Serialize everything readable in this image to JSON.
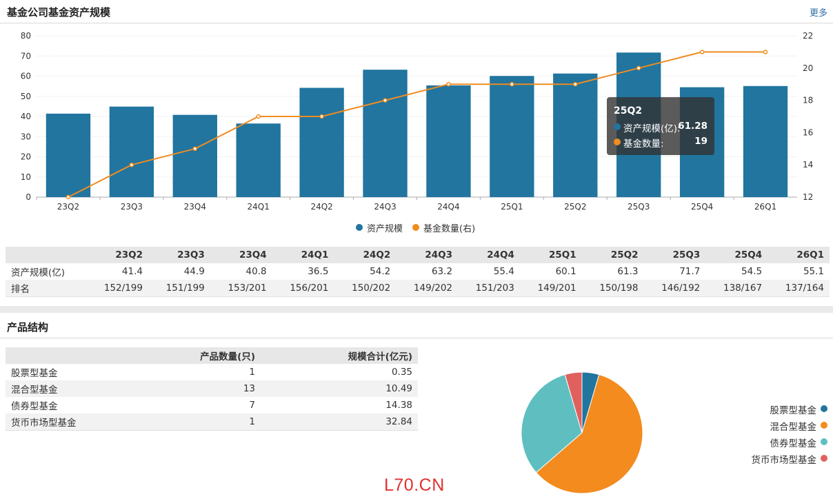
{
  "section1": {
    "title": "基金公司基金资产规模",
    "more": "更多"
  },
  "chart_data": [
    {
      "type": "bar+line",
      "categories": [
        "23Q2",
        "23Q3",
        "23Q4",
        "24Q1",
        "24Q2",
        "24Q3",
        "24Q4",
        "25Q1",
        "25Q2",
        "25Q3",
        "25Q4",
        "26Q1"
      ],
      "series": [
        {
          "name": "资产规模",
          "type": "bar",
          "axis": "left",
          "color": "#21759f",
          "values": [
            41.4,
            44.9,
            40.8,
            36.5,
            54.2,
            63.2,
            55.4,
            60.1,
            61.3,
            71.7,
            54.5,
            55.1
          ]
        },
        {
          "name": "基金数量(右)",
          "type": "line",
          "axis": "right",
          "color": "#f08c20",
          "values": [
            12,
            14,
            15,
            17,
            17,
            18,
            19,
            19,
            19,
            20,
            21,
            21
          ]
        }
      ],
      "y_left": {
        "min": 0,
        "max": 80,
        "ticks": [
          "0",
          "10",
          "20",
          "30",
          "40",
          "50",
          "60",
          "70",
          "80"
        ]
      },
      "y_right": {
        "min": 12,
        "max": 22,
        "ticks": [
          "12",
          "14",
          "16",
          "18",
          "20",
          "22"
        ]
      },
      "grid": true,
      "legend": "bottom-center"
    },
    {
      "type": "pie",
      "categories": [
        "股票型基金",
        "混合型基金",
        "债券型基金",
        "货币市场型基金"
      ],
      "values": [
        1,
        13,
        7,
        1
      ],
      "colors": [
        "#21759f",
        "#f38b1e",
        "#5fbfc0",
        "#e0605e"
      ],
      "legend": "right"
    }
  ],
  "tooltip": {
    "title": "25Q2",
    "rows": [
      {
        "label": "资产规模(亿):",
        "value": "61.28",
        "color": "#21759f"
      },
      {
        "label": "基金数量:",
        "value": "19",
        "color": "#f08c20"
      }
    ]
  },
  "scale_table": {
    "headers": [
      "23Q2",
      "23Q3",
      "23Q4",
      "24Q1",
      "24Q2",
      "24Q3",
      "24Q4",
      "25Q1",
      "25Q2",
      "25Q3",
      "25Q4",
      "26Q1"
    ],
    "rows": [
      {
        "label": "资产规模(亿)",
        "cells": [
          "41.4",
          "44.9",
          "40.8",
          "36.5",
          "54.2",
          "63.2",
          "55.4",
          "60.1",
          "61.3",
          "71.7",
          "54.5",
          "55.1"
        ]
      },
      {
        "label": "排名",
        "cells": [
          "152/199",
          "151/199",
          "153/201",
          "156/201",
          "150/202",
          "149/202",
          "151/203",
          "149/201",
          "150/198",
          "146/192",
          "138/167",
          "137/164"
        ]
      }
    ]
  },
  "section2": {
    "title": "产品结构"
  },
  "structure_table": {
    "headers": [
      "",
      "产品数量(只)",
      "规模合计(亿元)"
    ],
    "rows": [
      {
        "name": "股票型基金",
        "count": "1",
        "scale": "0.35"
      },
      {
        "name": "混合型基金",
        "count": "13",
        "scale": "10.49"
      },
      {
        "name": "债券型基金",
        "count": "7",
        "scale": "14.38"
      },
      {
        "name": "货币市场型基金",
        "count": "1",
        "scale": "32.84"
      }
    ]
  },
  "watermark": "L70.CN"
}
